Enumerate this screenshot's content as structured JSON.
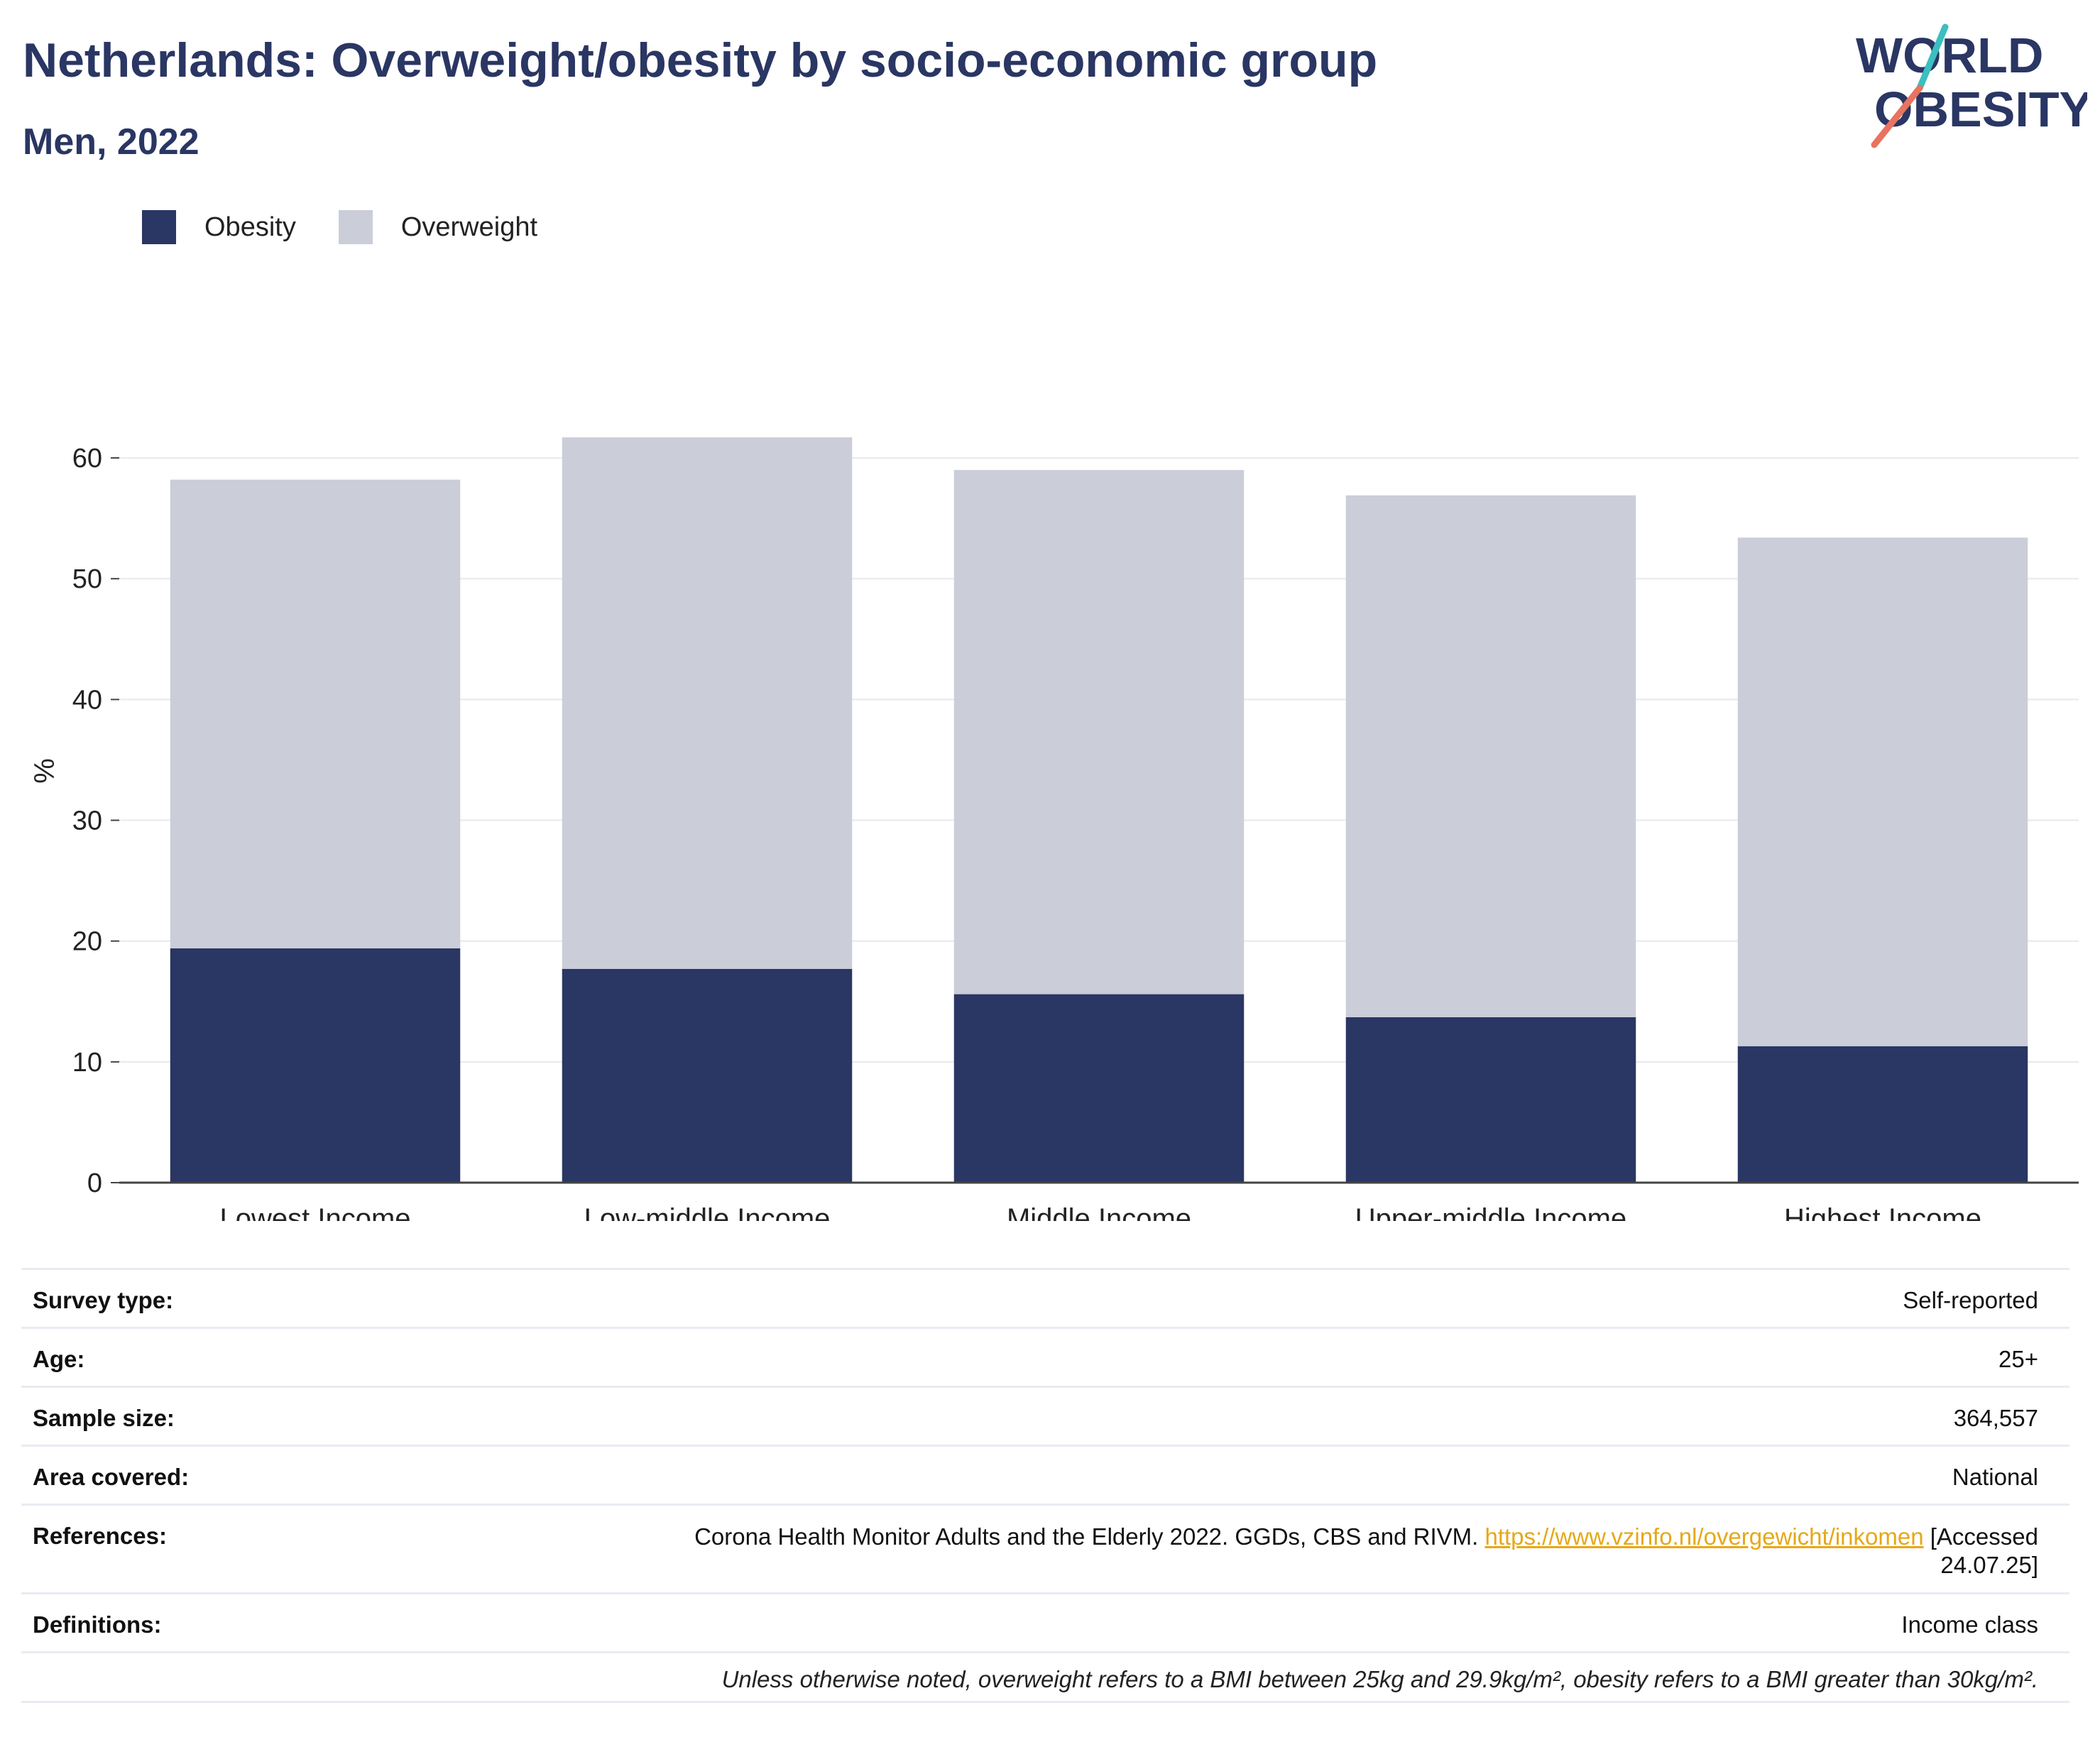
{
  "header": {
    "title": "Netherlands: Overweight/obesity by socio-economic group",
    "subtitle": "Men, 2022",
    "logo_line1": "WORLD",
    "logo_line2": "OBESITY"
  },
  "colors": {
    "obesity": "#2a3663",
    "overweight": "#cbcdd8",
    "link": "#e6a817",
    "grid": "#e8e8ee",
    "logo_teal": "#3bbfbf",
    "logo_coral": "#e8735f"
  },
  "legend": {
    "items": [
      {
        "label": "Obesity",
        "color": "#2a3663"
      },
      {
        "label": "Overweight",
        "color": "#cbcdd8"
      }
    ]
  },
  "chart_data": {
    "type": "bar",
    "stacked": true,
    "categories": [
      "Lowest Income",
      "Low-middle Income",
      "Middle Income",
      "Upper-middle Income",
      "Highest Income"
    ],
    "series": [
      {
        "name": "Obesity",
        "color": "#2a3663",
        "values": [
          19.4,
          17.7,
          15.6,
          13.7,
          11.3
        ]
      },
      {
        "name": "Overweight",
        "color": "#cbcdd8",
        "values": [
          38.8,
          44.0,
          43.4,
          43.2,
          42.1
        ]
      }
    ],
    "ylabel": "%",
    "yticks": [
      0,
      10,
      20,
      30,
      40,
      50,
      60
    ],
    "ylim": [
      0,
      65
    ],
    "grid": true,
    "legend_position": "top-left"
  },
  "meta": {
    "rows": [
      {
        "key": "Survey type:",
        "value": "Self-reported"
      },
      {
        "key": "Age:",
        "value": "25+"
      },
      {
        "key": "Sample size:",
        "value": "364,557"
      },
      {
        "key": "Area covered:",
        "value": "National"
      }
    ],
    "references": {
      "key": "References:",
      "text_before": "Corona Health Monitor Adults and the Elderly 2022. GGDs, CBS and RIVM. ",
      "link_text": "https://www.vzinfo.nl/overgewicht/inkomen",
      "text_after": " [Accessed",
      "line2": "24.07.25]"
    },
    "definitions": {
      "key": "Definitions:",
      "value": "Income class"
    },
    "note": "Unless otherwise noted, overweight refers to a BMI between 25kg and 29.9kg/m², obesity refers to a BMI greater than 30kg/m²."
  }
}
